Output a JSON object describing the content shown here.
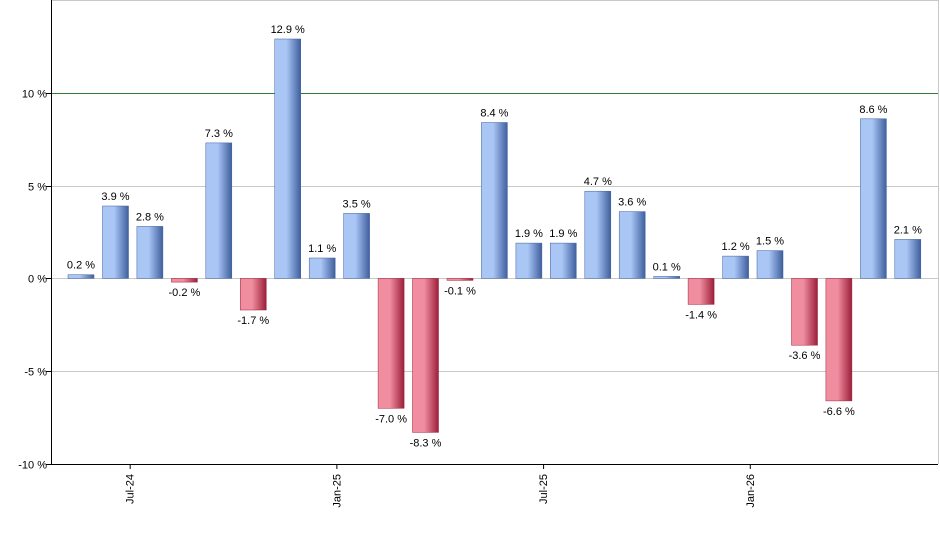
{
  "chart_data": {
    "type": "bar",
    "title": "",
    "xlabel": "",
    "ylabel": "",
    "ylim": [
      -10,
      15
    ],
    "y_ticks": [
      -10,
      -5,
      0,
      5,
      10
    ],
    "y_tick_labels": [
      "-10 %",
      "-5 %",
      "0 %",
      "5 %",
      "10 %"
    ],
    "grid": true,
    "reference_line": 10,
    "x_tick_labels": [
      {
        "label": "Jul-24",
        "after_index": 1
      },
      {
        "label": "Jan-25",
        "after_index": 7
      },
      {
        "label": "Jul-25",
        "after_index": 13
      },
      {
        "label": "Jan-26",
        "after_index": 19
      }
    ],
    "values": [
      0.2,
      3.9,
      2.8,
      -0.2,
      7.3,
      -1.7,
      12.9,
      1.1,
      3.5,
      -7.0,
      -8.3,
      -0.1,
      8.4,
      1.9,
      1.9,
      4.7,
      3.6,
      0.1,
      -1.4,
      1.2,
      1.5,
      -3.6,
      -6.6,
      8.6,
      2.1
    ],
    "data_labels": [
      "0.2 %",
      "3.9 %",
      "2.8 %",
      "-0.2 %",
      "7.3 %",
      "-1.7 %",
      "12.9 %",
      "1.1 %",
      "3.5 %",
      "-7.0 %",
      "-8.3 %",
      "-0.1 %",
      "8.4 %",
      "1.9 %",
      "1.9 %",
      "4.7 %",
      "3.6 %",
      "0.1 %",
      "-1.4 %",
      "1.2 %",
      "1.5 %",
      "-3.6 %",
      "-6.6 %",
      "8.6 %",
      "2.1 %"
    ],
    "colors": {
      "positive_light": "#a9c6f5",
      "positive_dark": "#3f5f9e",
      "negative_light": "#f08ea0",
      "negative_dark": "#9c1f3a",
      "grid": "#c8c8c8",
      "reference_line": "#2e7d32",
      "axis": "#000000"
    }
  }
}
